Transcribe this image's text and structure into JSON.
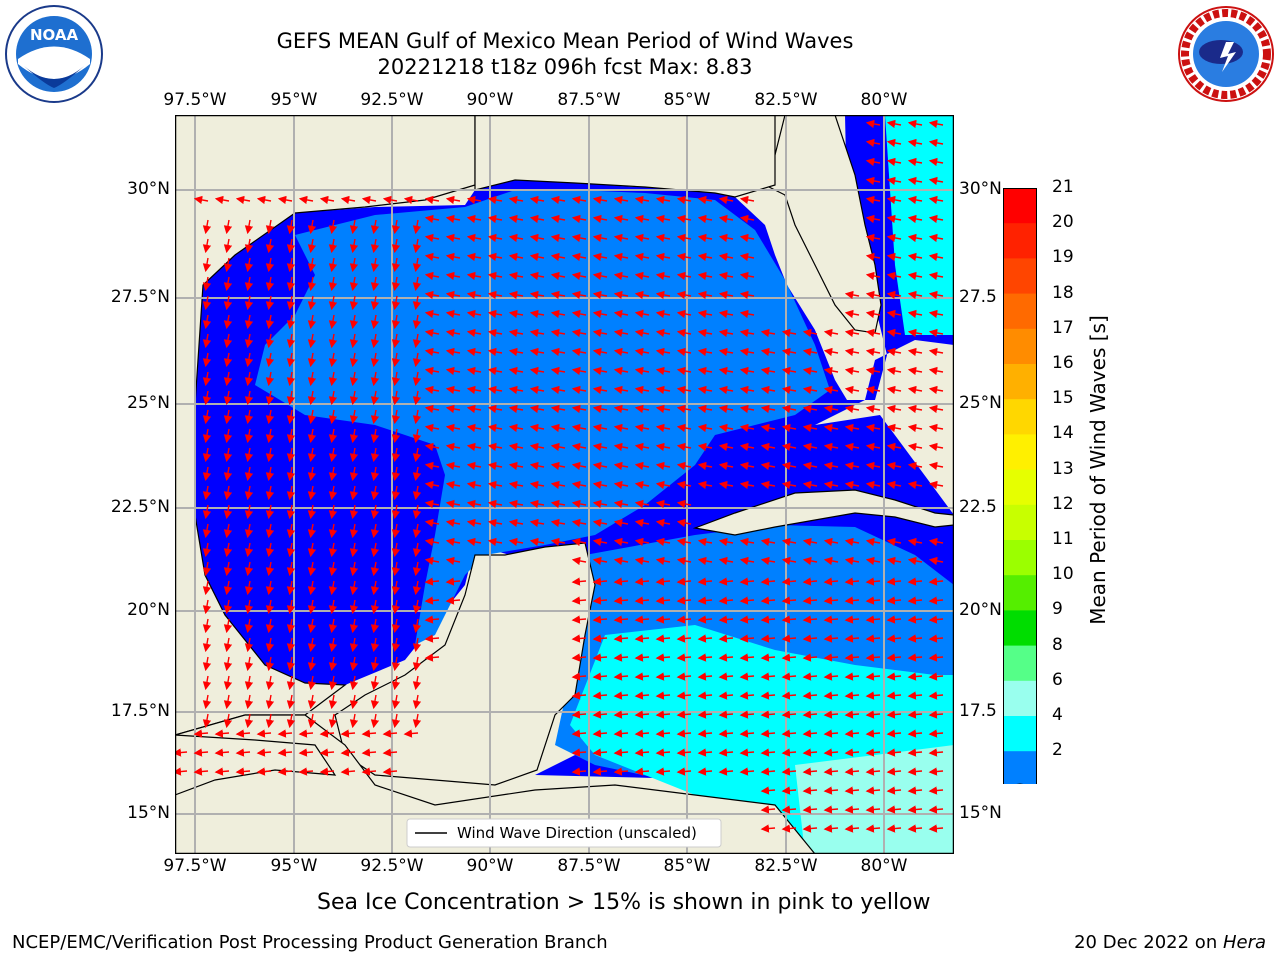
{
  "header": {
    "title_line1": "GEFS MEAN Gulf of Mexico Mean Period of Wind Waves",
    "title_line2": "20221218 t18z 096h fcst   Max: 8.83"
  },
  "logos": {
    "left_text": "NOAA",
    "right_text": "NATIONAL WEATHER SERVICE"
  },
  "map": {
    "lon_labels": [
      "97.5°W",
      "95°W",
      "92.5°W",
      "90°W",
      "87.5°W",
      "85°W",
      "82.5°W",
      "80°W"
    ],
    "lat_labels": [
      "30°N",
      "27.5°N",
      "25°N",
      "22.5°N",
      "20°N",
      "17.5°N",
      "15°N"
    ],
    "lat_labels_right": [
      "30°N",
      "27.5",
      "25°N",
      "22.5",
      "20°N",
      "17.5",
      "15°N"
    ],
    "legend": "Wind Wave Direction (unscaled)"
  },
  "colorbar": {
    "title": "Mean Period of Wind Waves [s]",
    "levels": [
      "21",
      "20",
      "19",
      "18",
      "17",
      "16",
      "15",
      "14",
      "13",
      "12",
      "11",
      "10",
      "9",
      "8",
      "6",
      "4",
      "2"
    ],
    "colors": [
      "#ff0000",
      "#ff2200",
      "#ff4500",
      "#ff6a00",
      "#ff8c00",
      "#ffb000",
      "#ffd700",
      "#fff000",
      "#e6ff00",
      "#c8ff00",
      "#9bff00",
      "#55ee00",
      "#00dd00",
      "#55ff88",
      "#99ffee",
      "#00ffff",
      "#0080ff",
      "#0000ff"
    ]
  },
  "notes": {
    "sea_ice": "Sea Ice Concentration > 15% is shown in pink to yellow",
    "credit": "NCEP/EMC/Verification Post Processing Product Generation Branch",
    "date": "20 Dec 2022 on ",
    "machine": "Hera"
  }
}
